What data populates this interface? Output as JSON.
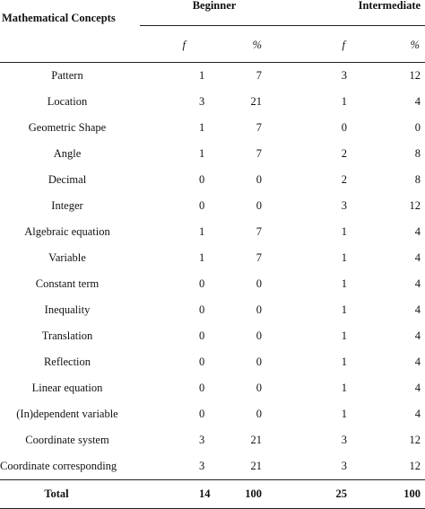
{
  "table": {
    "header": {
      "concept_label": "Mathematical Concepts",
      "groups": [
        "Beginner",
        "Intermediate"
      ],
      "sub_f": "f",
      "sub_pct": "%"
    },
    "rows": [
      {
        "concept": "Pattern",
        "beg_f": "1",
        "beg_pct": "7",
        "int_f": "3",
        "int_pct": "12"
      },
      {
        "concept": "Location",
        "beg_f": "3",
        "beg_pct": "21",
        "int_f": "1",
        "int_pct": "4"
      },
      {
        "concept": "Geometric Shape",
        "beg_f": "1",
        "beg_pct": "7",
        "int_f": "0",
        "int_pct": "0"
      },
      {
        "concept": "Angle",
        "beg_f": "1",
        "beg_pct": "7",
        "int_f": "2",
        "int_pct": "8"
      },
      {
        "concept": "Decimal",
        "beg_f": "0",
        "beg_pct": "0",
        "int_f": "2",
        "int_pct": "8"
      },
      {
        "concept": "Integer",
        "beg_f": "0",
        "beg_pct": "0",
        "int_f": "3",
        "int_pct": "12"
      },
      {
        "concept": "Algebraic equation",
        "beg_f": "1",
        "beg_pct": "7",
        "int_f": "1",
        "int_pct": "4"
      },
      {
        "concept": "Variable",
        "beg_f": "1",
        "beg_pct": "7",
        "int_f": "1",
        "int_pct": "4"
      },
      {
        "concept": "Constant term",
        "beg_f": "0",
        "beg_pct": "0",
        "int_f": "1",
        "int_pct": "4"
      },
      {
        "concept": "Inequality",
        "beg_f": "0",
        "beg_pct": "0",
        "int_f": "1",
        "int_pct": "4"
      },
      {
        "concept": "Translation",
        "beg_f": "0",
        "beg_pct": "0",
        "int_f": "1",
        "int_pct": "4"
      },
      {
        "concept": "Reflection",
        "beg_f": "0",
        "beg_pct": "0",
        "int_f": "1",
        "int_pct": "4"
      },
      {
        "concept": "Linear equation",
        "beg_f": "0",
        "beg_pct": "0",
        "int_f": "1",
        "int_pct": "4"
      },
      {
        "concept": "(In)dependent variable",
        "beg_f": "0",
        "beg_pct": "0",
        "int_f": "1",
        "int_pct": "4"
      },
      {
        "concept": "Coordinate system",
        "beg_f": "3",
        "beg_pct": "21",
        "int_f": "3",
        "int_pct": "12"
      },
      {
        "concept": "Coordinate corresponding",
        "beg_f": "3",
        "beg_pct": "21",
        "int_f": "3",
        "int_pct": "12"
      }
    ],
    "total": {
      "concept": "Total",
      "beg_f": "14",
      "beg_pct": "100",
      "int_f": "25",
      "int_pct": "100"
    }
  }
}
